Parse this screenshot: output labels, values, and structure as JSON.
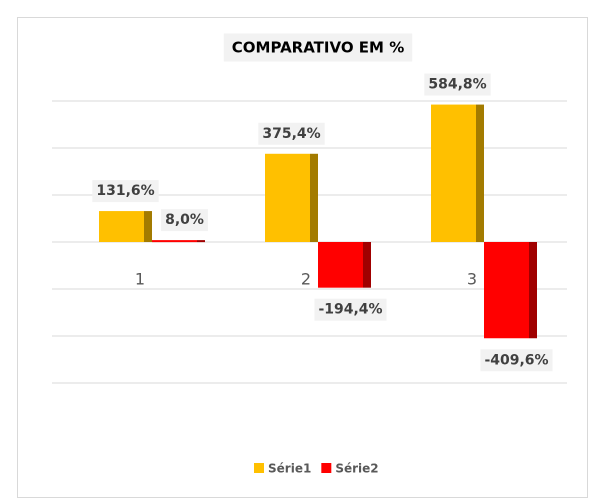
{
  "chart_data": {
    "type": "bar",
    "title": "COMPARATIVO  EM %",
    "categories": [
      "1",
      "2",
      "3"
    ],
    "series": [
      {
        "name": "Série1",
        "color": "#ffc000",
        "values": [
          131.6,
          375.4,
          584.8
        ],
        "value_labels": [
          "131,6%",
          "375,4%",
          "584,8%"
        ]
      },
      {
        "name": "Série2",
        "color": "#ff0000",
        "values": [
          8.0,
          -194.4,
          -409.6
        ],
        "value_labels": [
          "8,0%",
          "-194,4%",
          "-409,6%"
        ]
      }
    ],
    "ylim": [
      -600,
      600
    ],
    "yticks": [
      -600,
      -400,
      -200,
      0,
      200,
      400,
      600
    ],
    "grid": true,
    "legend": "bottom"
  }
}
